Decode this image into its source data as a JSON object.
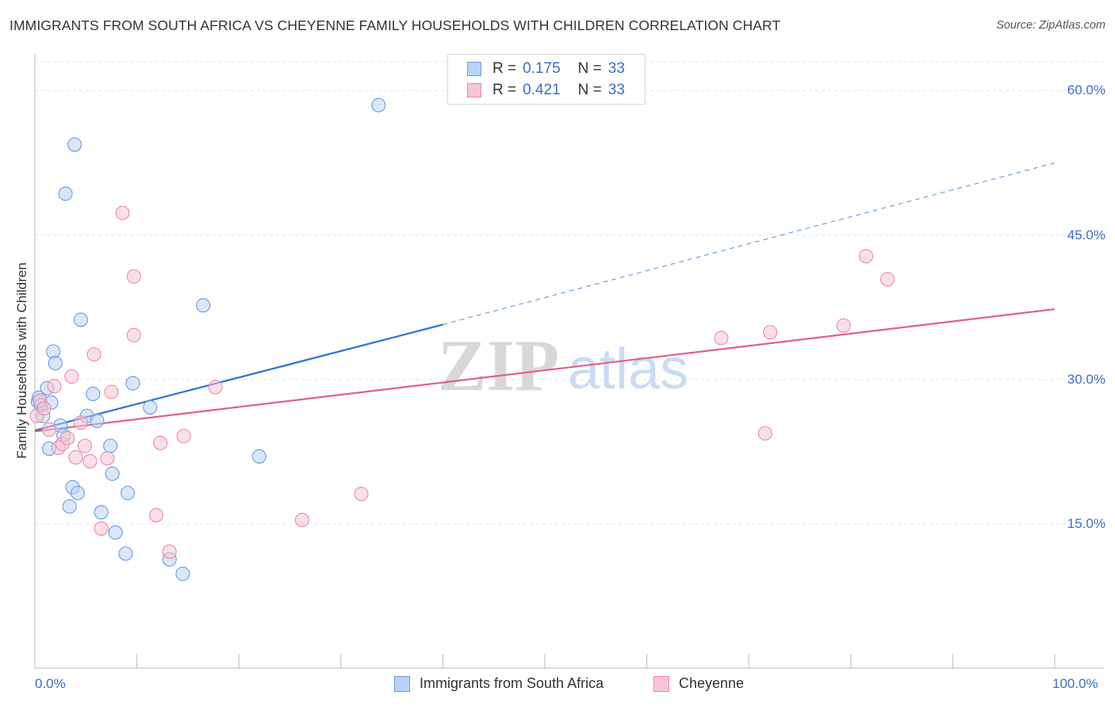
{
  "title": "IMMIGRANTS FROM SOUTH AFRICA VS CHEYENNE FAMILY HOUSEHOLDS WITH CHILDREN CORRELATION CHART",
  "source": "Source: ZipAtlas.com",
  "watermark": {
    "zip": "ZIP",
    "atlas": "atlas"
  },
  "legend_top": [
    {
      "r_label": "R =",
      "r_value": "0.175",
      "n_label": "N =",
      "n_value": "33"
    },
    {
      "r_label": "R =",
      "r_value": "0.421",
      "n_label": "N =",
      "n_value": "33"
    }
  ],
  "colors": {
    "blue_fill": "#b8d3f5",
    "blue_stroke": "#6a9be0",
    "blue_line": "#2f72d0",
    "pink_fill": "#f8c4d4",
    "pink_stroke": "#e98aa8",
    "pink_line": "#e0608e",
    "grid": "#e3e3e3",
    "axis_text": "#3a6fc4"
  },
  "chart_data": {
    "type": "scatter",
    "title": "IMMIGRANTS FROM SOUTH AFRICA VS CHEYENNE FAMILY HOUSEHOLDS WITH CHILDREN CORRELATION CHART",
    "xlabel": "",
    "ylabel": "Family Households with Children",
    "xlim": [
      0,
      100
    ],
    "ylim": [
      0,
      63
    ],
    "x_tick_labels": [
      "0.0%",
      "100.0%"
    ],
    "y_ticks": [
      15,
      30,
      45,
      60
    ],
    "y_tick_labels": [
      "15.0%",
      "30.0%",
      "45.0%",
      "60.0%"
    ],
    "grid": true,
    "legend_position": "bottom",
    "series": [
      {
        "name": "Immigrants from South Africa",
        "color": "blue",
        "points": [
          [
            0.3,
            27.7
          ],
          [
            0.4,
            28.1
          ],
          [
            0.6,
            27.3
          ],
          [
            0.8,
            26.2
          ],
          [
            1.2,
            29.1
          ],
          [
            1.4,
            22.8
          ],
          [
            1.6,
            27.6
          ],
          [
            1.8,
            32.9
          ],
          [
            2.0,
            31.7
          ],
          [
            2.5,
            25.2
          ],
          [
            2.8,
            24.2
          ],
          [
            3.0,
            49.3
          ],
          [
            3.4,
            16.8
          ],
          [
            3.7,
            18.8
          ],
          [
            3.9,
            54.4
          ],
          [
            4.2,
            18.2
          ],
          [
            4.5,
            36.2
          ],
          [
            5.1,
            26.2
          ],
          [
            5.7,
            28.5
          ],
          [
            6.1,
            25.7
          ],
          [
            6.5,
            16.2
          ],
          [
            7.4,
            23.1
          ],
          [
            7.6,
            20.2
          ],
          [
            7.9,
            14.1
          ],
          [
            8.9,
            11.9
          ],
          [
            9.1,
            18.2
          ],
          [
            9.6,
            29.6
          ],
          [
            11.3,
            27.1
          ],
          [
            13.2,
            11.3
          ],
          [
            14.5,
            9.8
          ],
          [
            16.5,
            37.7
          ],
          [
            22.0,
            22.0
          ],
          [
            33.7,
            58.5
          ]
        ]
      },
      {
        "name": "Cheyenne",
        "color": "pink",
        "points": [
          [
            0.2,
            26.2
          ],
          [
            0.5,
            27.8
          ],
          [
            0.9,
            27.0
          ],
          [
            1.4,
            24.8
          ],
          [
            1.9,
            29.3
          ],
          [
            2.3,
            22.9
          ],
          [
            2.7,
            23.3
          ],
          [
            3.2,
            23.9
          ],
          [
            3.6,
            30.3
          ],
          [
            4.0,
            21.9
          ],
          [
            4.5,
            25.5
          ],
          [
            4.9,
            23.1
          ],
          [
            5.4,
            21.5
          ],
          [
            5.8,
            32.6
          ],
          [
            6.5,
            14.5
          ],
          [
            7.1,
            21.8
          ],
          [
            7.5,
            28.7
          ],
          [
            8.6,
            47.3
          ],
          [
            9.7,
            40.7
          ],
          [
            9.7,
            34.6
          ],
          [
            11.9,
            15.9
          ],
          [
            12.3,
            23.4
          ],
          [
            13.2,
            12.1
          ],
          [
            14.6,
            24.1
          ],
          [
            17.7,
            29.2
          ],
          [
            26.2,
            15.4
          ],
          [
            32.0,
            18.1
          ],
          [
            67.3,
            34.3
          ],
          [
            71.6,
            24.4
          ],
          [
            72.1,
            34.9
          ],
          [
            79.3,
            35.6
          ],
          [
            81.5,
            42.8
          ],
          [
            83.6,
            40.4
          ]
        ]
      }
    ],
    "trendlines": [
      {
        "series": "Immigrants from South Africa",
        "x0": 0,
        "y0": 24.7,
        "x1": 40,
        "y1": 35.7,
        "dashed_to_x": 100,
        "dashed_to_y": 52.5
      },
      {
        "series": "Cheyenne",
        "x0": 0,
        "y0": 24.6,
        "x1": 100,
        "y1": 37.3
      }
    ]
  }
}
